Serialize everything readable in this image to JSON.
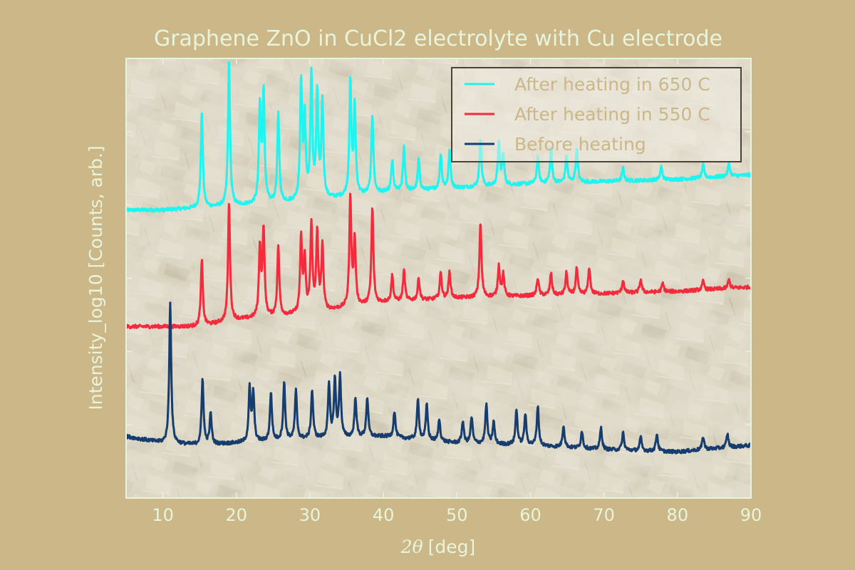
{
  "colors": {
    "figure_bg": "#cbb787",
    "text": "#e8f4dc",
    "axes_frame": "#e8f4dc",
    "legend_text": "#cbb787",
    "legend_frame": "#4a4238"
  },
  "chart_data": {
    "type": "line",
    "title": "Graphene ZnO in CuCl2 electrolyte with Cu electrode",
    "xlabel_symbol": "2θ",
    "xlabel_unit": "[deg]",
    "ylabel": "Intensity_log10 [Counts, arb.]",
    "xlim": [
      5,
      90
    ],
    "ylim": [
      0,
      1
    ],
    "y_tick_labels_shown": false,
    "x_ticks": [
      10,
      20,
      30,
      40,
      50,
      60,
      70,
      80,
      90
    ],
    "x_tick_labels": [
      "10",
      "20",
      "30",
      "40",
      "50",
      "60",
      "70",
      "80",
      "90"
    ],
    "grid": false,
    "background_image": "sem-micrograph-zno-crystals",
    "legend": {
      "position": "top-right"
    },
    "series": [
      {
        "name": "After heating in 650 C",
        "color": "#1ef5f0",
        "baseline": [
          [
            5,
            0.655
          ],
          [
            10,
            0.655
          ],
          [
            15,
            0.66
          ],
          [
            20,
            0.665
          ],
          [
            30,
            0.675
          ],
          [
            40,
            0.695
          ],
          [
            50,
            0.705
          ],
          [
            60,
            0.715
          ],
          [
            70,
            0.72
          ],
          [
            80,
            0.725
          ],
          [
            90,
            0.735
          ]
        ],
        "peaks": [
          [
            15.3,
            0.22
          ],
          [
            19.0,
            0.33
          ],
          [
            23.2,
            0.22
          ],
          [
            23.7,
            0.25
          ],
          [
            25.7,
            0.2
          ],
          [
            28.8,
            0.27
          ],
          [
            29.3,
            0.18
          ],
          [
            30.2,
            0.28
          ],
          [
            31.0,
            0.24
          ],
          [
            31.7,
            0.22
          ],
          [
            35.5,
            0.26
          ],
          [
            36.1,
            0.2
          ],
          [
            38.5,
            0.18
          ],
          [
            41.2,
            0.07
          ],
          [
            42.8,
            0.1
          ],
          [
            44.8,
            0.07
          ],
          [
            47.8,
            0.08
          ],
          [
            49.0,
            0.09
          ],
          [
            53.2,
            0.11
          ],
          [
            55.7,
            0.1
          ],
          [
            56.3,
            0.07
          ],
          [
            61.0,
            0.06
          ],
          [
            62.8,
            0.08
          ],
          [
            64.9,
            0.06
          ],
          [
            66.3,
            0.08
          ],
          [
            72.6,
            0.03
          ],
          [
            77.8,
            0.03
          ],
          [
            83.5,
            0.03
          ],
          [
            87.0,
            0.03
          ]
        ],
        "noise": 0.004
      },
      {
        "name": "After heating in 550 C",
        "color": "#f52a3c",
        "baseline": [
          [
            5,
            0.39
          ],
          [
            10,
            0.39
          ],
          [
            15,
            0.39
          ],
          [
            20,
            0.405
          ],
          [
            30,
            0.42
          ],
          [
            40,
            0.445
          ],
          [
            50,
            0.455
          ],
          [
            60,
            0.46
          ],
          [
            70,
            0.465
          ],
          [
            80,
            0.47
          ],
          [
            90,
            0.48
          ]
        ],
        "peaks": [
          [
            15.3,
            0.15
          ],
          [
            19.0,
            0.27
          ],
          [
            23.2,
            0.16
          ],
          [
            23.7,
            0.2
          ],
          [
            25.7,
            0.16
          ],
          [
            28.8,
            0.17
          ],
          [
            29.3,
            0.12
          ],
          [
            30.2,
            0.2
          ],
          [
            31.0,
            0.18
          ],
          [
            31.7,
            0.15
          ],
          [
            35.5,
            0.25
          ],
          [
            36.1,
            0.15
          ],
          [
            38.5,
            0.22
          ],
          [
            41.2,
            0.06
          ],
          [
            42.8,
            0.07
          ],
          [
            44.8,
            0.05
          ],
          [
            47.8,
            0.06
          ],
          [
            49.0,
            0.06
          ],
          [
            53.2,
            0.17
          ],
          [
            55.7,
            0.07
          ],
          [
            56.3,
            0.05
          ],
          [
            61.0,
            0.04
          ],
          [
            62.8,
            0.05
          ],
          [
            64.9,
            0.05
          ],
          [
            66.3,
            0.06
          ],
          [
            68.0,
            0.06
          ],
          [
            72.6,
            0.03
          ],
          [
            75.0,
            0.03
          ],
          [
            78.0,
            0.02
          ],
          [
            83.5,
            0.02
          ],
          [
            87.0,
            0.02
          ]
        ],
        "noise": 0.004
      },
      {
        "name": "Before heating",
        "color": "#163d6e",
        "baseline": [
          [
            5,
            0.14
          ],
          [
            10,
            0.125
          ],
          [
            15,
            0.12
          ],
          [
            20,
            0.125
          ],
          [
            30,
            0.135
          ],
          [
            40,
            0.14
          ],
          [
            50,
            0.125
          ],
          [
            60,
            0.12
          ],
          [
            70,
            0.11
          ],
          [
            80,
            0.105
          ],
          [
            90,
            0.12
          ]
        ],
        "peaks": [
          [
            11.0,
            0.32
          ],
          [
            15.4,
            0.15
          ],
          [
            16.5,
            0.07
          ],
          [
            21.8,
            0.12
          ],
          [
            22.3,
            0.11
          ],
          [
            24.7,
            0.11
          ],
          [
            26.5,
            0.13
          ],
          [
            28.1,
            0.11
          ],
          [
            30.3,
            0.11
          ],
          [
            32.6,
            0.12
          ],
          [
            33.4,
            0.13
          ],
          [
            34.1,
            0.14
          ],
          [
            36.2,
            0.09
          ],
          [
            37.8,
            0.09
          ],
          [
            41.5,
            0.06
          ],
          [
            44.7,
            0.09
          ],
          [
            45.9,
            0.08
          ],
          [
            47.6,
            0.05
          ],
          [
            50.8,
            0.05
          ],
          [
            52.0,
            0.06
          ],
          [
            54.0,
            0.09
          ],
          [
            55.0,
            0.05
          ],
          [
            58.1,
            0.08
          ],
          [
            59.3,
            0.07
          ],
          [
            61.0,
            0.09
          ],
          [
            64.5,
            0.05
          ],
          [
            67.0,
            0.04
          ],
          [
            69.6,
            0.05
          ],
          [
            72.6,
            0.04
          ],
          [
            75.0,
            0.03
          ],
          [
            77.2,
            0.04
          ],
          [
            83.5,
            0.03
          ],
          [
            86.8,
            0.03
          ]
        ],
        "noise": 0.004
      }
    ]
  }
}
